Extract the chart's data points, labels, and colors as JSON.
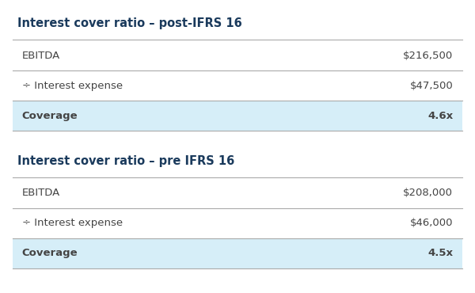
{
  "background_color": "#ffffff",
  "table1": {
    "title": "Interest cover ratio – post-IFRS 16",
    "rows": [
      {
        "label": "EBITDA",
        "value": "$216,500",
        "highlight": false
      },
      {
        "label": "÷ Interest expense",
        "value": "$47,500",
        "highlight": false
      },
      {
        "label": "Coverage",
        "value": "4.6x",
        "highlight": true
      }
    ]
  },
  "table2": {
    "title": "Interest cover ratio – pre IFRS 16",
    "rows": [
      {
        "label": "EBITDA",
        "value": "$208,000",
        "highlight": false
      },
      {
        "label": "÷ Interest expense",
        "value": "$46,000",
        "highlight": false
      },
      {
        "label": "Coverage",
        "value": "4.5x",
        "highlight": true
      }
    ]
  },
  "title_color": "#1a3a5c",
  "text_color": "#444444",
  "highlight_color": "#d6eef8",
  "line_color": "#aaaaaa",
  "title_fontsize": 10.5,
  "row_fontsize": 9.5
}
